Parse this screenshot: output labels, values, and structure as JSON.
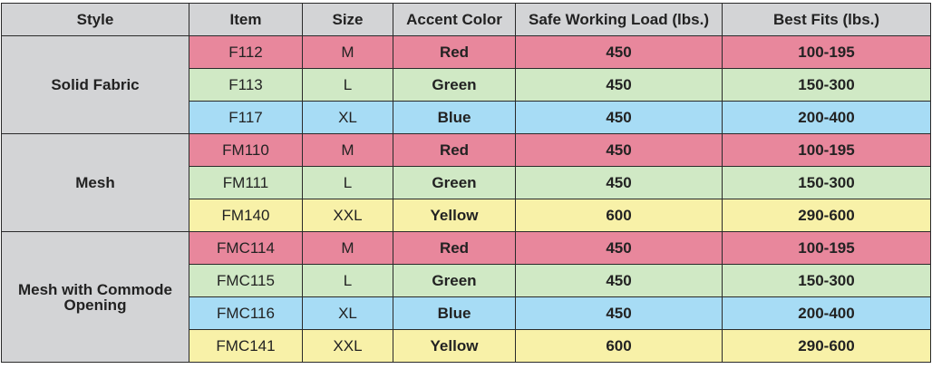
{
  "headers": [
    "Style",
    "Item",
    "Size",
    "Accent Color",
    "Safe Working Load (lbs.)",
    "Best Fits (lbs.)"
  ],
  "colors": {
    "Red": "#e8879c",
    "Green": "#d0e9c5",
    "Blue": "#a7dcf5",
    "Yellow": "#f8f1a8",
    "header": "#d3d4d6"
  },
  "groups": [
    {
      "style": "Solid Fabric",
      "rows": [
        {
          "item": "F112",
          "size": "M",
          "color": "Red",
          "load": "450",
          "fits": "100-195"
        },
        {
          "item": "F113",
          "size": "L",
          "color": "Green",
          "load": "450",
          "fits": "150-300"
        },
        {
          "item": "F117",
          "size": "XL",
          "color": "Blue",
          "load": "450",
          "fits": "200-400"
        }
      ]
    },
    {
      "style": "Mesh",
      "rows": [
        {
          "item": "FM110",
          "size": "M",
          "color": "Red",
          "load": "450",
          "fits": "100-195"
        },
        {
          "item": "FM111",
          "size": "L",
          "color": "Green",
          "load": "450",
          "fits": "150-300"
        },
        {
          "item": "FM140",
          "size": "XXL",
          "color": "Yellow",
          "load": "600",
          "fits": "290-600"
        }
      ]
    },
    {
      "style": "Mesh with Commode Opening",
      "rows": [
        {
          "item": "FMC114",
          "size": "M",
          "color": "Red",
          "load": "450",
          "fits": "100-195"
        },
        {
          "item": "FMC115",
          "size": "L",
          "color": "Green",
          "load": "450",
          "fits": "150-300"
        },
        {
          "item": "FMC116",
          "size": "XL",
          "color": "Blue",
          "load": "450",
          "fits": "200-400"
        },
        {
          "item": "FMC141",
          "size": "XXL",
          "color": "Yellow",
          "load": "600",
          "fits": "290-600"
        }
      ]
    }
  ]
}
